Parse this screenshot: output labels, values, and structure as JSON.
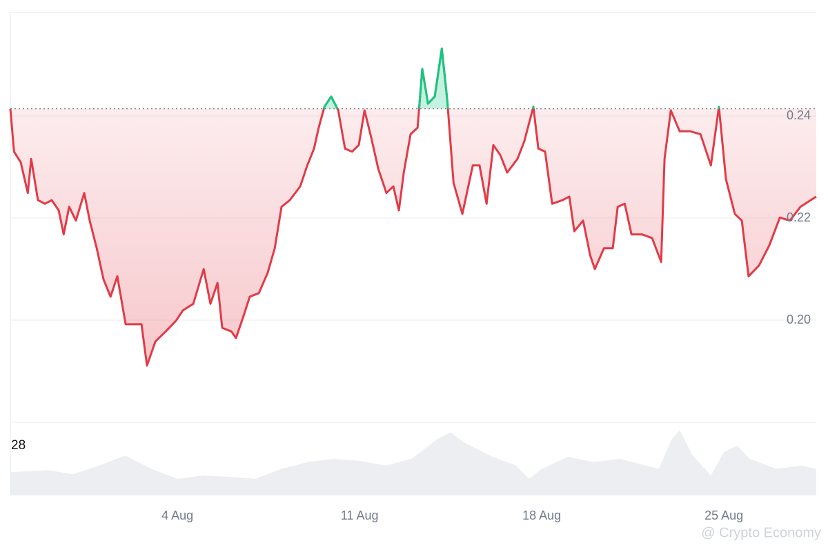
{
  "chart_data": {
    "type": "line",
    "x": [
      -2.42,
      -2.28,
      -2.02,
      -1.75,
      -1.62,
      -1.36,
      -1.09,
      -0.83,
      -0.56,
      -0.37,
      -0.16,
      0.1,
      0.42,
      0.63,
      0.9,
      1.16,
      1.43,
      1.69,
      2.01,
      2.36,
      2.62,
      2.83,
      3.15,
      3.55,
      3.95,
      4.21,
      4.61,
      5.01,
      5.27,
      5.54,
      5.72,
      6.07,
      6.25,
      6.52,
      6.78,
      7.13,
      7.47,
      7.74,
      8.0,
      8.32,
      8.72,
      8.99,
      9.25,
      9.43,
      9.65,
      9.91,
      10.18,
      10.44,
      10.71,
      10.97,
      11.19,
      11.45,
      11.72,
      12.03,
      12.3,
      12.51,
      12.7,
      12.96,
      13.23,
      13.41,
      13.63,
      13.89,
      14.16,
      14.37,
      14.61,
      14.95,
      15.35,
      15.61,
      15.88,
      16.14,
      16.41,
      16.67,
      17.07,
      17.33,
      17.68,
      17.87,
      18.13,
      18.4,
      18.8,
      19.06,
      19.25,
      19.59,
      19.86,
      20.04,
      20.39,
      20.73,
      20.92,
      21.19,
      21.45,
      21.85,
      22.24,
      22.59,
      22.72,
      22.96,
      23.3,
      23.7,
      24.1,
      24.5,
      24.81,
      25.08,
      25.42,
      25.69,
      25.95,
      26.35,
      26.75,
      27.15,
      27.54,
      27.94,
      28.55
    ],
    "values": [
      0.2414,
      0.233,
      0.2309,
      0.2249,
      0.2316,
      0.2235,
      0.2228,
      0.2235,
      0.2215,
      0.2168,
      0.2222,
      0.2195,
      0.2249,
      0.2195,
      0.2141,
      0.208,
      0.2046,
      0.2086,
      0.1992,
      0.1992,
      0.1992,
      0.1911,
      0.1958,
      0.1978,
      0.1999,
      0.2019,
      0.2032,
      0.21,
      0.2032,
      0.2073,
      0.1985,
      0.1978,
      0.1965,
      0.2005,
      0.2046,
      0.2053,
      0.2093,
      0.2141,
      0.2222,
      0.2235,
      0.2262,
      0.2303,
      0.2336,
      0.2377,
      0.2418,
      0.2438,
      0.2411,
      0.2336,
      0.233,
      0.2343,
      0.2411,
      0.2357,
      0.2296,
      0.2249,
      0.2262,
      0.2215,
      0.2289,
      0.2364,
      0.2377,
      0.2492,
      0.2424,
      0.2438,
      0.2532,
      0.2431,
      0.2269,
      0.2208,
      0.2303,
      0.2303,
      0.2228,
      0.2343,
      0.2323,
      0.2289,
      0.2316,
      0.235,
      0.2418,
      0.2336,
      0.233,
      0.2228,
      0.2235,
      0.2242,
      0.2174,
      0.2195,
      0.2127,
      0.21,
      0.2141,
      0.2141,
      0.2222,
      0.2228,
      0.2168,
      0.2168,
      0.2161,
      0.2114,
      0.2316,
      0.2411,
      0.237,
      0.237,
      0.2364,
      0.2303,
      0.2418,
      0.2276,
      0.2208,
      0.2195,
      0.2086,
      0.2107,
      0.2147,
      0.2201,
      0.2195,
      0.2222,
      0.2242
    ],
    "baseline": 0.2414,
    "color_below": "#e23a47",
    "color_above": "#16c784",
    "xlim": [
      -2.42,
      28.55
    ],
    "ylim": [
      0.18,
      0.26
    ],
    "xticks": [
      {
        "value": 4,
        "label": "4 Aug"
      },
      {
        "value": 11,
        "label": "11 Aug"
      },
      {
        "value": 18,
        "label": "18 Aug"
      },
      {
        "value": 25,
        "label": "25 Aug"
      }
    ],
    "yticks": [
      {
        "value": 0.2,
        "label": "0.20"
      },
      {
        "value": 0.22,
        "label": "0.22"
      },
      {
        "value": 0.24,
        "label": "0.24"
      }
    ],
    "grid": true,
    "volume": {
      "label": "28",
      "color": "#eceef1",
      "vlim": [
        0,
        110
      ],
      "x": [
        -2.42,
        -1,
        0,
        1,
        2,
        3,
        4,
        5,
        6,
        7,
        8,
        9,
        10,
        11,
        12,
        13,
        14,
        14.5,
        15,
        16,
        17,
        17.5,
        18,
        19,
        20,
        21,
        22,
        22.5,
        23,
        23.3,
        23.8,
        24.5,
        25,
        25.5,
        26,
        27,
        28,
        28.55
      ],
      "values": [
        35,
        38,
        32,
        45,
        60,
        40,
        25,
        30,
        28,
        25,
        40,
        50,
        55,
        52,
        45,
        55,
        85,
        95,
        80,
        60,
        45,
        25,
        40,
        58,
        50,
        55,
        45,
        40,
        85,
        98,
        60,
        30,
        65,
        75,
        55,
        40,
        45,
        40
      ]
    },
    "watermark": "@ Crypto Economy"
  }
}
